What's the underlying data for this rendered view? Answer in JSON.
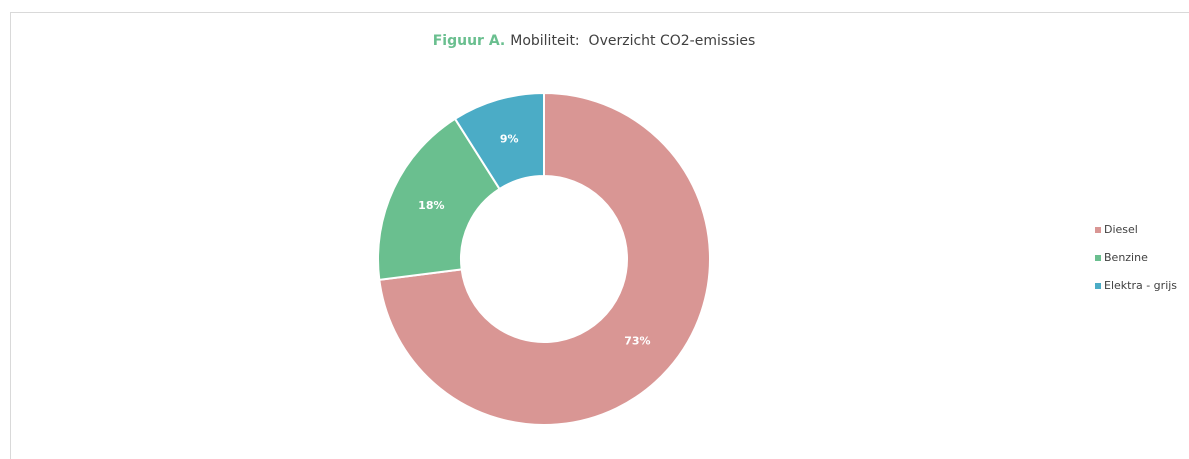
{
  "chart_data": {
    "type": "donut",
    "title_lead": "Figuur A.",
    "title": "Mobiliteit:  Overzicht CO2-emissies",
    "categories": [
      "Diesel",
      "Benzine",
      "Elektra - grijs"
    ],
    "values": [
      73,
      18,
      9
    ],
    "value_labels": [
      "73%",
      "18%",
      "9%"
    ],
    "colors": [
      "#d99694",
      "#6abf8f",
      "#4bacc6"
    ],
    "legend": "right"
  }
}
